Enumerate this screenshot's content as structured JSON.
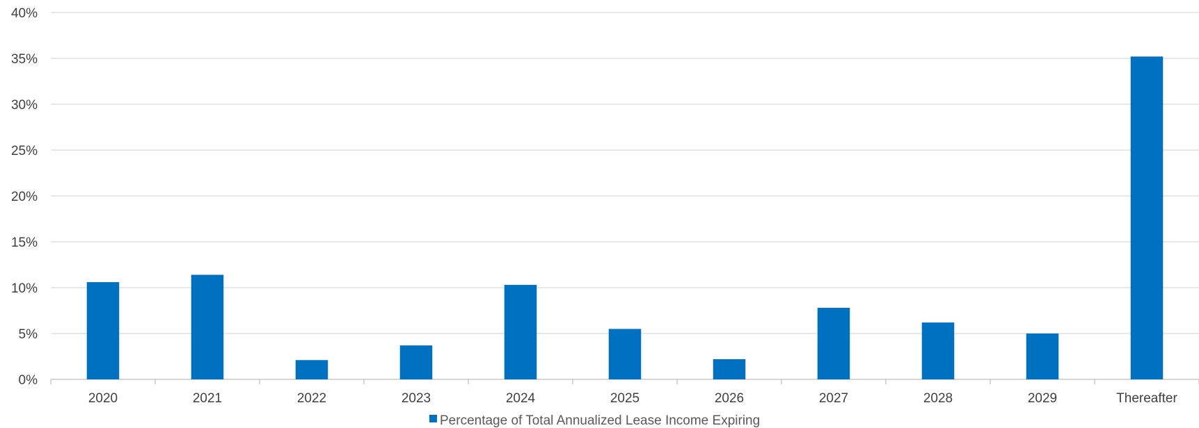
{
  "chart_data": {
    "type": "bar",
    "categories": [
      "2020",
      "2021",
      "2022",
      "2023",
      "2024",
      "2025",
      "2026",
      "2027",
      "2028",
      "2029",
      "Thereafter"
    ],
    "series": [
      {
        "name": "Percentage of Total Annualized Lease Income Expiring",
        "values": [
          10.6,
          11.4,
          2.1,
          3.7,
          10.3,
          5.5,
          2.2,
          7.8,
          6.2,
          5.0,
          35.2
        ],
        "color": "#0070C0"
      }
    ],
    "yticks": [
      "0%",
      "5%",
      "10%",
      "15%",
      "20%",
      "25%",
      "30%",
      "35%",
      "40%"
    ],
    "ylim": [
      0,
      40
    ],
    "grid": true,
    "legend_position": "bottom-center",
    "title": "",
    "xlabel": "",
    "ylabel": ""
  }
}
